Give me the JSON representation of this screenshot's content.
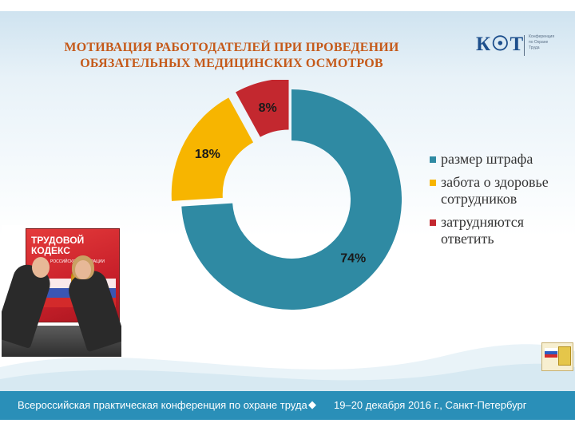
{
  "slide": {
    "title_line1": "МОТИВАЦИЯ РАБОТОДАТЕЛЕЙ ПРИ ПРОВЕДЕНИИ",
    "title_line2": "ОБЯЗАТЕЛЬНЫХ МЕДИЦИНСКИХ ОСМОТРОВ"
  },
  "logo": {
    "text": "К☉Т",
    "sub_lines": [
      "Конференция",
      "по Охране",
      "Труда"
    ]
  },
  "book": {
    "title_line1": "ТРУДОВОЙ",
    "title_line2": "КОДЕКС",
    "subtitle": "РОССИЙСКОЙ ФЕДЕРАЦИИ"
  },
  "chart_data": {
    "type": "pie",
    "style": "donut",
    "categories": [
      "размер штрафа",
      "забота о здоровье сотрудников",
      "затрудняются ответить"
    ],
    "values": [
      74,
      18,
      8
    ],
    "value_labels": [
      "74%",
      "18%",
      "8%"
    ],
    "colors": [
      "#2f8aa3",
      "#f7b500",
      "#c3282f"
    ],
    "legend_position": "right",
    "exploded": true
  },
  "footer": {
    "left": "Всероссийская практическая конференция по охране труда",
    "separator": "◆",
    "right": "19–20 декабря 2016 г., Санкт-Петербург"
  }
}
